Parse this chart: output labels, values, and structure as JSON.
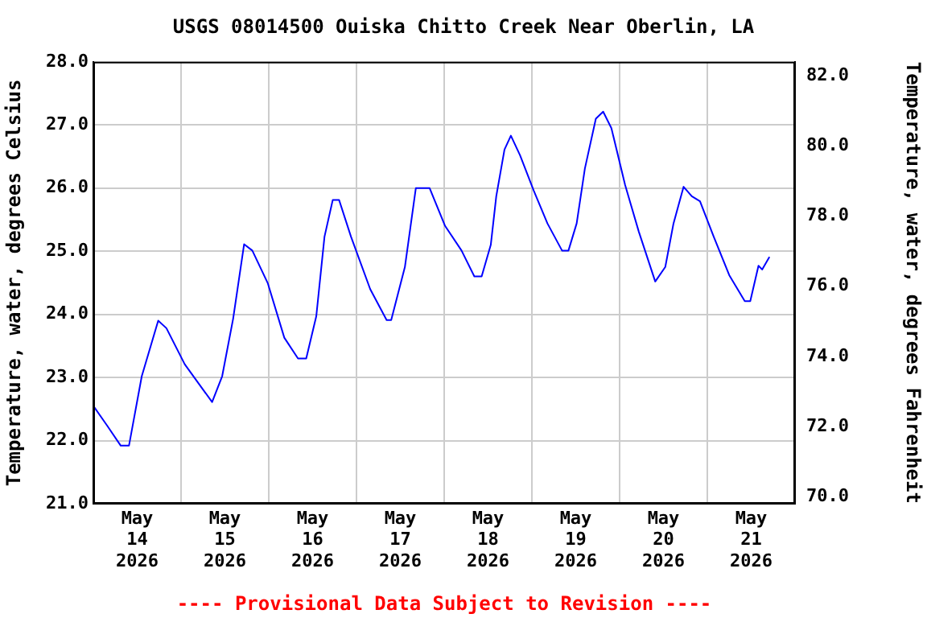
{
  "chart_data": {
    "type": "line",
    "title": "USGS 08014500 Ouiska Chitto Creek Near Oberlin, LA",
    "ylabel": "Temperature, water, degrees Celsius",
    "y2label": "Temperature, water, degrees Fahrenheit",
    "annotations": [
      "---- Provisional Data Subject to Revision ----"
    ],
    "x": [
      "2026-05-14T00:00",
      "2026-05-14T03:45",
      "2026-05-14T07:30",
      "2026-05-14T09:45",
      "2026-05-14T13:15",
      "2026-05-14T17:45",
      "2026-05-14T20:00",
      "2026-05-15T01:00",
      "2026-05-15T08:30",
      "2026-05-15T11:15",
      "2026-05-15T14:15",
      "2026-05-15T17:15",
      "2026-05-15T19:30",
      "2026-05-15T23:45",
      "2026-05-16T04:15",
      "2026-05-16T08:00",
      "2026-05-16T10:15",
      "2026-05-16T13:00",
      "2026-05-16T15:15",
      "2026-05-16T17:30",
      "2026-05-16T19:15",
      "2026-05-16T22:30",
      "2026-05-17T03:45",
      "2026-05-17T08:15",
      "2026-05-17T09:30",
      "2026-05-17T13:15",
      "2026-05-17T16:15",
      "2026-05-17T20:00",
      "2026-05-18T00:15",
      "2026-05-18T04:45",
      "2026-05-18T08:15",
      "2026-05-18T10:15",
      "2026-05-18T12:45",
      "2026-05-18T14:15",
      "2026-05-18T16:30",
      "2026-05-18T18:15",
      "2026-05-18T20:45",
      "2026-05-19T00:30",
      "2026-05-19T04:15",
      "2026-05-19T08:15",
      "2026-05-19T10:00",
      "2026-05-19T12:15",
      "2026-05-19T14:30",
      "2026-05-19T17:30",
      "2026-05-19T19:30",
      "2026-05-19T21:45",
      "2026-05-20T01:30",
      "2026-05-20T05:15",
      "2026-05-20T09:45",
      "2026-05-20T12:30",
      "2026-05-20T14:45",
      "2026-05-20T17:30",
      "2026-05-20T19:45",
      "2026-05-20T22:00",
      "2026-05-21T01:45",
      "2026-05-21T06:00",
      "2026-05-21T10:15",
      "2026-05-21T11:45",
      "2026-05-21T14:00",
      "2026-05-21T15:00",
      "2026-05-21T17:00"
    ],
    "series": [
      {
        "color": "#0000ff",
        "values": [
          22.55,
          22.24,
          21.92,
          21.92,
          23.02,
          23.9,
          23.78,
          23.21,
          22.61,
          23.02,
          23.93,
          25.11,
          25.01,
          24.49,
          23.63,
          23.3,
          23.3,
          23.97,
          25.23,
          25.81,
          25.81,
          25.23,
          24.4,
          23.91,
          23.91,
          24.75,
          26.0,
          26.0,
          25.4,
          25.01,
          24.6,
          24.6,
          25.1,
          25.87,
          26.61,
          26.83,
          26.52,
          25.96,
          25.44,
          25.01,
          25.01,
          25.44,
          26.31,
          27.1,
          27.21,
          26.95,
          26.05,
          25.31,
          24.52,
          24.75,
          25.44,
          26.02,
          25.87,
          25.79,
          25.23,
          24.62,
          24.21,
          24.21,
          24.77,
          24.71,
          24.91
        ]
      }
    ],
    "xlim": [
      "2026-05-14T00:00",
      "2026-05-22T00:00"
    ],
    "xticks": [
      {
        "value": "2026-05-14T00:00",
        "label": null
      },
      {
        "value": "2026-05-14T12:00",
        "label": "May\n14\n2026"
      },
      {
        "value": "2026-05-15T00:00",
        "label": null
      },
      {
        "value": "2026-05-15T12:00",
        "label": "May\n15\n2026"
      },
      {
        "value": "2026-05-16T00:00",
        "label": null
      },
      {
        "value": "2026-05-16T12:00",
        "label": "May\n16\n2026"
      },
      {
        "value": "2026-05-17T00:00",
        "label": null
      },
      {
        "value": "2026-05-17T12:00",
        "label": "May\n17\n2026"
      },
      {
        "value": "2026-05-18T00:00",
        "label": null
      },
      {
        "value": "2026-05-18T12:00",
        "label": "May\n18\n2026"
      },
      {
        "value": "2026-05-19T00:00",
        "label": null
      },
      {
        "value": "2026-05-19T12:00",
        "label": "May\n19\n2026"
      },
      {
        "value": "2026-05-20T00:00",
        "label": null
      },
      {
        "value": "2026-05-20T12:00",
        "label": "May\n20\n2026"
      },
      {
        "value": "2026-05-21T00:00",
        "label": null
      },
      {
        "value": "2026-05-21T12:00",
        "label": "May\n21\n2026"
      },
      {
        "value": "2026-05-22T00:00",
        "label": null
      }
    ],
    "ylim": [
      21,
      28
    ],
    "yticks": [
      {
        "value": 21,
        "label": "21.0"
      },
      {
        "value": 22,
        "label": "22.0"
      },
      {
        "value": 23,
        "label": "23.0"
      },
      {
        "value": 24,
        "label": "24.0"
      },
      {
        "value": 25,
        "label": "25.0"
      },
      {
        "value": 26,
        "label": "26.0"
      },
      {
        "value": 27,
        "label": "27.0"
      },
      {
        "value": 28,
        "label": "28.0"
      }
    ],
    "y2lim": [
      69.8,
      82.4
    ],
    "y2ticks": [
      {
        "value": 70,
        "label": "70.0"
      },
      {
        "value": 72,
        "label": "72.0"
      },
      {
        "value": 74,
        "label": "74.0"
      },
      {
        "value": 76,
        "label": "76.0"
      },
      {
        "value": 78,
        "label": "78.0"
      },
      {
        "value": 80,
        "label": "80.0"
      },
      {
        "value": 82,
        "label": "82.0"
      }
    ],
    "grid": true,
    "legend": false,
    "marker": "none",
    "line_style": "solid"
  }
}
